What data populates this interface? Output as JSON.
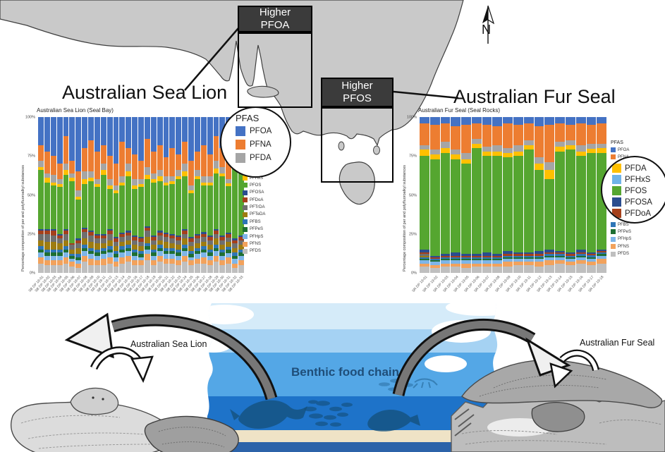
{
  "map": {
    "north_label": "N",
    "annotations": {
      "pfoa": {
        "line1": "Higher",
        "line2": "PFOA"
      },
      "pfos": {
        "line1": "Higher",
        "line2": "PFOS"
      }
    },
    "land_color": "#c9c9c9",
    "box_color": "#3b3b3b"
  },
  "headings": {
    "left": "Australian Sea Lion",
    "right": "Australian Fur Seal"
  },
  "legends": {
    "left": {
      "circle_title": "PFAS",
      "circle_items": [
        {
          "label": "PFOA",
          "color": "#4472C4"
        },
        {
          "label": "PFNA",
          "color": "#ED7D31"
        },
        {
          "label": "PFDA",
          "color": "#A5A5A5"
        }
      ],
      "small_items": [
        {
          "label": "PFHxS",
          "color": "#FFC000"
        },
        {
          "label": "PFOS",
          "color": "#55A630"
        },
        {
          "label": "PFOSA",
          "color": "#2A4D8F"
        },
        {
          "label": "PFDoA",
          "color": "#A5401B"
        },
        {
          "label": "PFTrDA",
          "color": "#6F6F6F"
        },
        {
          "label": "PFTeDA",
          "color": "#9E7C10"
        },
        {
          "label": "PFBS",
          "color": "#2E75B6"
        },
        {
          "label": "PFPeS",
          "color": "#1E6F32"
        },
        {
          "label": "PFHpS",
          "color": "#7EB5E8"
        },
        {
          "label": "PFNS",
          "color": "#F2A25C"
        },
        {
          "label": "PFDS",
          "color": "#BFBFBF"
        }
      ]
    },
    "right": {
      "title": "PFAS",
      "top_items": [
        {
          "label": "PFOA",
          "color": "#4472C4"
        },
        {
          "label": "PFNA",
          "color": "#ED7D31"
        }
      ],
      "circle_items": [
        {
          "label": "PFDA",
          "color": "#FFC000"
        },
        {
          "label": "PFHxS",
          "color": "#6FB3E8"
        },
        {
          "label": "PFOS",
          "color": "#55A630"
        },
        {
          "label": "PFOSA",
          "color": "#2A4D8F"
        },
        {
          "label": "PFDoA",
          "color": "#A5401B"
        }
      ],
      "bottom_items": [
        {
          "label": "PFBS",
          "color": "#2E75B6"
        },
        {
          "label": "PFPeS",
          "color": "#1E6F32"
        },
        {
          "label": "PFHpS",
          "color": "#7EB5E8"
        },
        {
          "label": "PFNS",
          "color": "#F2A25C"
        },
        {
          "label": "PFDS",
          "color": "#BFBFBF"
        }
      ]
    }
  },
  "scene": {
    "benthic_label": "Benthic food chain",
    "left_label": "Australian Sea Lion",
    "right_label": "Australian Fur Seal"
  },
  "chart_data": [
    {
      "type": "bar",
      "stacked": true,
      "title": "Australian Sea Lion (Seal Bay)",
      "ylabel": "Percentage composition of per and polyfluoroalkyl substances",
      "yticks": [
        "100%",
        "75%",
        "50%",
        "25%",
        "0%"
      ],
      "ylim": [
        0,
        100
      ],
      "grid": false,
      "compounds": [
        {
          "name": "PFOA",
          "color": "#4472C4"
        },
        {
          "name": "PFNA",
          "color": "#ED7D31"
        },
        {
          "name": "PFDA",
          "color": "#A5A5A5"
        },
        {
          "name": "PFHxS",
          "color": "#FFC000"
        },
        {
          "name": "PFOS",
          "color": "#55A630"
        },
        {
          "name": "PFOSA",
          "color": "#2A4D8F"
        },
        {
          "name": "PFDoA",
          "color": "#A5401B"
        },
        {
          "name": "PFTrDA",
          "color": "#6F6F6F"
        },
        {
          "name": "PFTeDA",
          "color": "#9E7C10"
        },
        {
          "name": "PFBS",
          "color": "#2E75B6"
        },
        {
          "name": "PFPeS",
          "color": "#1E6F32"
        },
        {
          "name": "PFHpS",
          "color": "#7EB5E8"
        },
        {
          "name": "PFNS",
          "color": "#F2A25C"
        },
        {
          "name": "PFDS",
          "color": "#BFBFBF"
        }
      ],
      "categories": [
        "SB DP 18-01",
        "SB DP 18-02",
        "SB DP 18-03",
        "SB DP 18-04",
        "SB DP 18-05",
        "SB DP 18-06",
        "SB DP 18-07",
        "SB DP 18-08",
        "SB DP 18-09",
        "SB DP 18-10",
        "SB DP 18-11",
        "SB DP 18-12",
        "SB DP 18-13",
        "SB DP 18-14",
        "SB DP 18-15",
        "SB DP 18-16",
        "SB DP 18-17",
        "SB DP 18-18",
        "SB DP 18-19",
        "SB DP 18-20",
        "SB DP 18-21",
        "SB DP 18-22",
        "SB DP 18-23",
        "SB DP 18-24",
        "SB DP 18-25",
        "SB DP 18-26",
        "SB DP 18-27",
        "SB DP 18-28",
        "SB DP 18-29",
        "SB DP 18-30",
        "SB DP 18-31",
        "SB DP 18-32",
        "SB DP 18-33"
      ],
      "bars": [
        [
          18,
          10,
          4,
          2,
          38,
          1,
          2,
          4,
          4,
          2,
          2,
          3,
          4,
          6
        ],
        [
          22,
          14,
          3,
          3,
          30,
          1,
          2,
          5,
          5,
          2,
          2,
          3,
          3,
          5
        ],
        [
          25,
          12,
          5,
          2,
          28,
          1,
          3,
          4,
          5,
          2,
          2,
          3,
          3,
          5
        ],
        [
          30,
          10,
          3,
          2,
          30,
          1,
          2,
          3,
          4,
          2,
          2,
          3,
          3,
          5
        ],
        [
          12,
          18,
          4,
          3,
          35,
          1,
          2,
          4,
          4,
          2,
          2,
          3,
          4,
          6
        ],
        [
          28,
          8,
          3,
          2,
          40,
          0,
          1,
          3,
          3,
          1,
          2,
          2,
          3,
          4
        ],
        [
          35,
          12,
          4,
          2,
          25,
          1,
          2,
          3,
          4,
          2,
          2,
          2,
          3,
          3
        ],
        [
          20,
          15,
          5,
          3,
          28,
          1,
          2,
          4,
          4,
          2,
          2,
          3,
          4,
          7
        ],
        [
          15,
          20,
          4,
          2,
          32,
          1,
          2,
          4,
          4,
          2,
          2,
          3,
          4,
          5
        ],
        [
          22,
          18,
          3,
          2,
          30,
          1,
          2,
          3,
          4,
          2,
          2,
          3,
          3,
          5
        ],
        [
          18,
          12,
          4,
          3,
          38,
          1,
          2,
          3,
          3,
          2,
          2,
          3,
          4,
          5
        ],
        [
          25,
          15,
          4,
          2,
          26,
          1,
          2,
          4,
          4,
          2,
          2,
          3,
          4,
          6
        ],
        [
          30,
          14,
          3,
          2,
          28,
          1,
          2,
          3,
          3,
          2,
          2,
          3,
          3,
          4
        ],
        [
          16,
          22,
          4,
          2,
          30,
          1,
          2,
          3,
          3,
          2,
          2,
          3,
          4,
          6
        ],
        [
          20,
          10,
          5,
          3,
          35,
          1,
          2,
          3,
          3,
          2,
          2,
          3,
          4,
          7
        ],
        [
          24,
          16,
          4,
          2,
          30,
          1,
          2,
          3,
          3,
          2,
          2,
          3,
          3,
          5
        ],
        [
          28,
          12,
          3,
          2,
          32,
          1,
          2,
          3,
          3,
          2,
          2,
          2,
          3,
          5
        ],
        [
          14,
          18,
          5,
          3,
          30,
          1,
          2,
          4,
          4,
          2,
          2,
          3,
          4,
          8
        ],
        [
          22,
          14,
          4,
          2,
          34,
          1,
          2,
          3,
          3,
          2,
          2,
          3,
          3,
          5
        ],
        [
          18,
          16,
          4,
          3,
          32,
          1,
          2,
          3,
          3,
          2,
          2,
          3,
          4,
          7
        ],
        [
          26,
          12,
          4,
          2,
          30,
          1,
          2,
          3,
          4,
          2,
          2,
          3,
          3,
          6
        ],
        [
          20,
          18,
          3,
          2,
          32,
          1,
          2,
          3,
          3,
          2,
          2,
          3,
          3,
          6
        ],
        [
          24,
          10,
          4,
          2,
          36,
          1,
          2,
          3,
          3,
          2,
          2,
          3,
          3,
          5
        ],
        [
          16,
          14,
          5,
          3,
          34,
          1,
          2,
          3,
          4,
          2,
          2,
          3,
          4,
          7
        ],
        [
          28,
          16,
          3,
          2,
          28,
          1,
          2,
          3,
          3,
          2,
          2,
          2,
          3,
          5
        ],
        [
          22,
          12,
          4,
          2,
          35,
          1,
          2,
          3,
          3,
          2,
          2,
          3,
          3,
          6
        ],
        [
          18,
          20,
          4,
          2,
          30,
          1,
          2,
          3,
          3,
          2,
          2,
          3,
          4,
          6
        ],
        [
          24,
          14,
          4,
          2,
          32,
          1,
          2,
          3,
          3,
          2,
          2,
          3,
          3,
          5
        ],
        [
          12,
          16,
          5,
          3,
          36,
          1,
          2,
          3,
          4,
          2,
          2,
          3,
          4,
          7
        ],
        [
          20,
          12,
          4,
          2,
          38,
          1,
          2,
          3,
          3,
          2,
          2,
          3,
          3,
          5
        ],
        [
          26,
          14,
          3,
          2,
          30,
          1,
          2,
          3,
          3,
          2,
          2,
          3,
          4,
          6
        ],
        [
          10,
          8,
          3,
          2,
          55,
          1,
          2,
          3,
          3,
          2,
          2,
          3,
          3,
          3
        ],
        [
          15,
          10,
          4,
          2,
          45,
          1,
          2,
          3,
          3,
          2,
          2,
          3,
          3,
          5
        ]
      ]
    },
    {
      "type": "bar",
      "stacked": true,
      "title": "Australian Fur Seal (Seal Rocks)",
      "ylabel": "Percentage composition of per and polyfluoroalkyl substances",
      "yticks": [
        "100%",
        "75%",
        "50%",
        "25%",
        "0%"
      ],
      "ylim": [
        0,
        100
      ],
      "grid": false,
      "compounds": [
        {
          "name": "PFOA",
          "color": "#4472C4"
        },
        {
          "name": "PFNA",
          "color": "#ED7D31"
        },
        {
          "name": "PFDA",
          "color": "#A5A5A5"
        },
        {
          "name": "PFHxS",
          "color": "#FFC000"
        },
        {
          "name": "PFOS",
          "color": "#55A630"
        },
        {
          "name": "PFOSA",
          "color": "#2A4D8F"
        },
        {
          "name": "PFDoA",
          "color": "#A5401B"
        },
        {
          "name": "PFTrDA",
          "color": "#6F6F6F"
        },
        {
          "name": "PFTeDA",
          "color": "#9E7C10"
        },
        {
          "name": "PFBS",
          "color": "#2E75B6"
        },
        {
          "name": "PFPeS",
          "color": "#1E6F32"
        },
        {
          "name": "PFHpS",
          "color": "#7EB5E8"
        },
        {
          "name": "PFNS",
          "color": "#F2A25C"
        },
        {
          "name": "PFDS",
          "color": "#BFBFBF"
        }
      ],
      "categories": [
        "SR DP 19-01",
        "SR DP 19-02",
        "SR DP 19-03",
        "SR DP 19-04",
        "SR DP 19-05",
        "SR DP 19-06",
        "SR DP 19-07",
        "SR DP 19-08",
        "SR DP 19-09",
        "SR DP 19-10",
        "SR DP 19-11",
        "SR DP 19-12",
        "SR DP 19-13",
        "SR DP 19-14",
        "SR DP 19-15",
        "SR DP 19-16",
        "SR DP 19-17",
        "SR DP 19-18"
      ],
      "bars": [
        [
          4,
          14,
          3,
          4,
          60,
          2,
          1,
          1,
          1,
          1,
          1,
          2,
          2,
          4
        ],
        [
          5,
          16,
          3,
          3,
          62,
          1,
          1,
          0,
          0,
          1,
          1,
          2,
          2,
          3
        ],
        [
          4,
          12,
          4,
          3,
          65,
          1,
          1,
          0,
          0,
          1,
          1,
          2,
          2,
          4
        ],
        [
          6,
          15,
          3,
          3,
          60,
          2,
          1,
          0,
          0,
          1,
          1,
          2,
          2,
          4
        ],
        [
          5,
          18,
          4,
          3,
          58,
          1,
          1,
          0,
          0,
          1,
          1,
          2,
          3,
          3
        ],
        [
          4,
          10,
          3,
          3,
          68,
          1,
          1,
          0,
          0,
          1,
          1,
          2,
          2,
          4
        ],
        [
          5,
          14,
          3,
          3,
          62,
          2,
          1,
          0,
          0,
          1,
          1,
          2,
          2,
          4
        ],
        [
          6,
          12,
          4,
          3,
          63,
          1,
          1,
          0,
          0,
          1,
          1,
          2,
          2,
          4
        ],
        [
          4,
          16,
          3,
          3,
          60,
          2,
          1,
          0,
          0,
          1,
          1,
          2,
          3,
          4
        ],
        [
          5,
          13,
          4,
          3,
          62,
          1,
          1,
          0,
          0,
          1,
          1,
          2,
          2,
          5
        ],
        [
          4,
          11,
          3,
          3,
          66,
          1,
          1,
          0,
          0,
          1,
          1,
          2,
          2,
          5
        ],
        [
          6,
          20,
          4,
          4,
          52,
          2,
          1,
          0,
          0,
          1,
          1,
          2,
          3,
          4
        ],
        [
          5,
          24,
          5,
          6,
          45,
          2,
          1,
          0,
          0,
          1,
          1,
          2,
          3,
          5
        ],
        [
          4,
          12,
          3,
          3,
          64,
          1,
          1,
          0,
          0,
          1,
          1,
          2,
          2,
          6
        ],
        [
          5,
          10,
          3,
          3,
          66,
          1,
          1,
          0,
          0,
          1,
          1,
          2,
          2,
          5
        ],
        [
          4,
          14,
          4,
          3,
          60,
          2,
          1,
          0,
          0,
          1,
          1,
          2,
          2,
          6
        ],
        [
          5,
          12,
          3,
          3,
          63,
          1,
          1,
          0,
          0,
          1,
          1,
          2,
          2,
          5
        ],
        [
          4,
          13,
          3,
          3,
          62,
          1,
          1,
          0,
          0,
          1,
          1,
          2,
          3,
          6
        ]
      ]
    }
  ]
}
